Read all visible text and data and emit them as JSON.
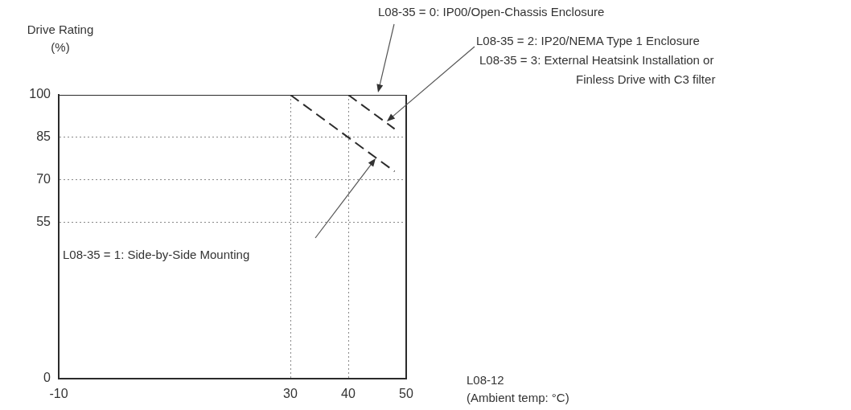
{
  "chart_data": {
    "type": "line",
    "ylabel": "Drive Rating\n(%)",
    "xlabel": "L08-12\n(Ambient temp: °C)",
    "xlim": [
      -10,
      50
    ],
    "xticks": [
      -10,
      30,
      40,
      50
    ],
    "ylim": [
      0,
      100
    ],
    "yticks": [
      0,
      55,
      70,
      85,
      100
    ],
    "grid": true,
    "legend": false,
    "marker": "none",
    "series": [
      {
        "color": "#2b2b2b",
        "line_style": "solid",
        "x": [
          -10,
          50
        ],
        "values": [
          100,
          100
        ]
      },
      {
        "color": "#2b2b2b",
        "line_style": "dashed",
        "x": [
          40,
          48
        ],
        "values": [
          100,
          88
        ]
      },
      {
        "color": "#2b2b2b",
        "line_style": "dashed",
        "x": [
          30,
          48
        ],
        "values": [
          100,
          73
        ]
      }
    ],
    "annotations": [
      "L08-35 = 0: IP00/Open-Chassis Enclosure",
      "L08-35 = 2: IP20/NEMA Type 1 Enclosure",
      "L08-35 = 3: External Heatsink Installation or\nFinless Drive with C3 filter",
      "L08-35 = 1: Side-by-Side Mounting"
    ]
  }
}
